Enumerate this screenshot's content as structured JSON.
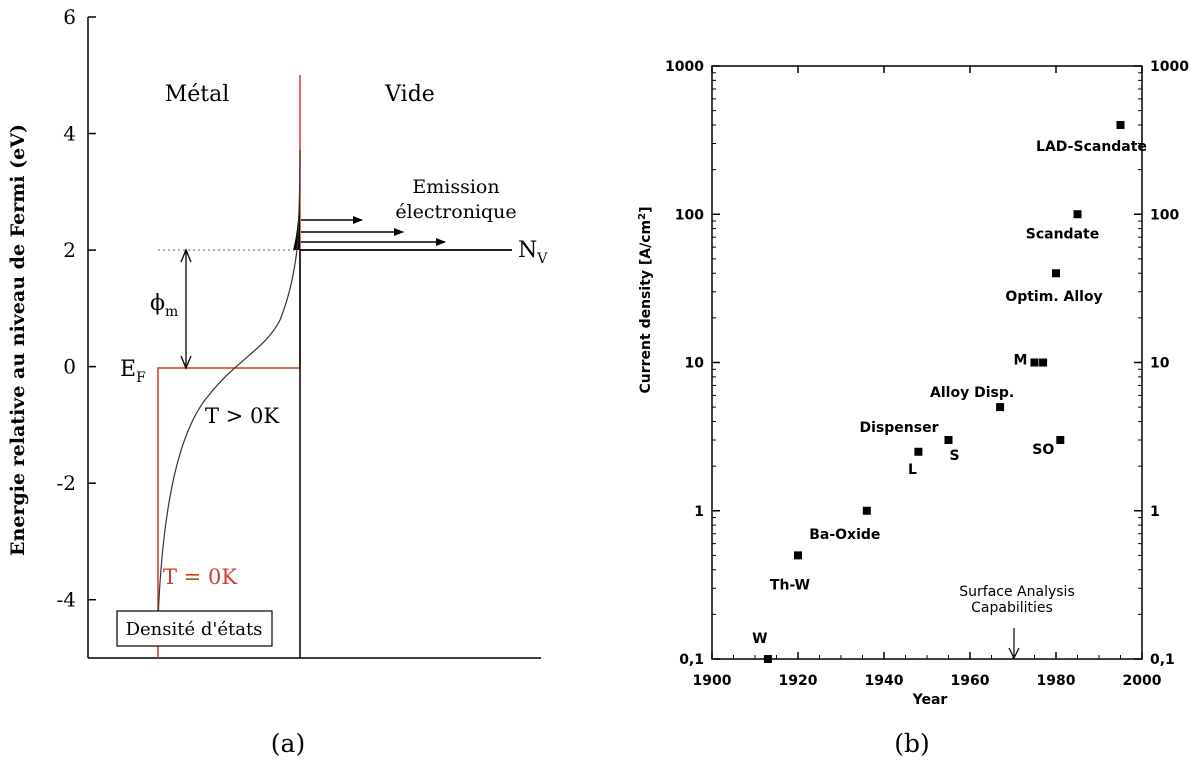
{
  "panel_a": {
    "caption": "(a)",
    "ylabel": "Energie relative au niveau de Fermi (eV)",
    "region_left": "Métal",
    "region_right": "Vide",
    "emission_line1": "Emission",
    "emission_line2": "électronique",
    "nv_label": "N",
    "nv_sub": "V",
    "phi_label": "ϕ",
    "phi_sub": "m",
    "ef_label": "E",
    "ef_sub": "F",
    "t_hot": "T > 0K",
    "t_zero": "T = 0K",
    "dos_box": "Densité d'états",
    "red_color": "#d43a2a"
  },
  "panel_b": {
    "caption": "(b)",
    "annotation_line1": "Surface Analysis",
    "annotation_line2": "Capabilities"
  },
  "chart_data": [
    {
      "type": "line",
      "title": "",
      "xlabel": "",
      "ylabel": "Energie relative au niveau de Fermi (eV)",
      "ylim": [
        -5,
        6
      ],
      "yticks": [
        -4,
        -2,
        0,
        2,
        4,
        6
      ],
      "series": [
        {
          "name": "T = 0K",
          "note": "step occupancy up to E_F = 0 eV"
        },
        {
          "name": "T > 0K",
          "note": "Fermi-Dirac smoothed occupancy"
        }
      ],
      "annotations": {
        "vacuum_level_eV": 2,
        "fermi_level_eV": 0
      }
    },
    {
      "type": "scatter",
      "title": "",
      "xlabel": "Year",
      "ylabel": "Current density [A/cm²]",
      "xlim": [
        1900,
        2000
      ],
      "ylim": [
        0.1,
        1000
      ],
      "yscale": "log",
      "xticks": [
        "1900",
        "1920",
        "1940",
        "1960",
        "1980",
        "2000"
      ],
      "yticks": [
        "0,1",
        "1",
        "10",
        "100",
        "1000"
      ],
      "points": [
        {
          "label": "W",
          "x": 1913,
          "y": 0.1
        },
        {
          "label": "Th-W",
          "x": 1920,
          "y": 0.5
        },
        {
          "label": "Ba-Oxide",
          "x": 1936,
          "y": 1.0
        },
        {
          "label": "L",
          "x": 1948,
          "y": 2.5
        },
        {
          "label": "S",
          "x": 1955,
          "y": 3.0
        },
        {
          "label": "Alloy Disp.",
          "x": 1967,
          "y": 5.0
        },
        {
          "label": "M",
          "x": 1975,
          "y": 10
        },
        {
          "label": "",
          "x": 1977,
          "y": 10
        },
        {
          "label": "SO",
          "x": 1981,
          "y": 3.0
        },
        {
          "label": "Optim. Alloy",
          "x": 1980,
          "y": 40
        },
        {
          "label": "Scandate",
          "x": 1985,
          "y": 100
        },
        {
          "label": "LAD-Scandate",
          "x": 1995,
          "y": 400
        }
      ],
      "extra_labels": [
        "Dispenser"
      ],
      "grid": false
    }
  ]
}
